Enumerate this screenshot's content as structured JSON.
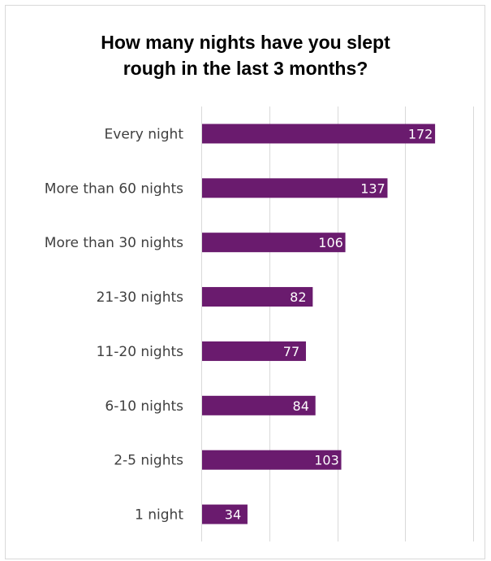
{
  "chart_data": {
    "type": "bar",
    "orientation": "horizontal",
    "title_lines": [
      "How many nights have you slept",
      "rough in the last 3 months?"
    ],
    "categories": [
      "Every night",
      "More than 60 nights",
      "More than 30 nights",
      "21-30 nights",
      "11-20 nights",
      "6-10 nights",
      "2-5 nights",
      "1 night"
    ],
    "values": [
      172,
      137,
      106,
      82,
      77,
      84,
      103,
      34
    ],
    "xlim": [
      0,
      200
    ],
    "grid": true,
    "data_labels": true,
    "bar_color": "#6a1b6e",
    "label_color": "#404040"
  }
}
